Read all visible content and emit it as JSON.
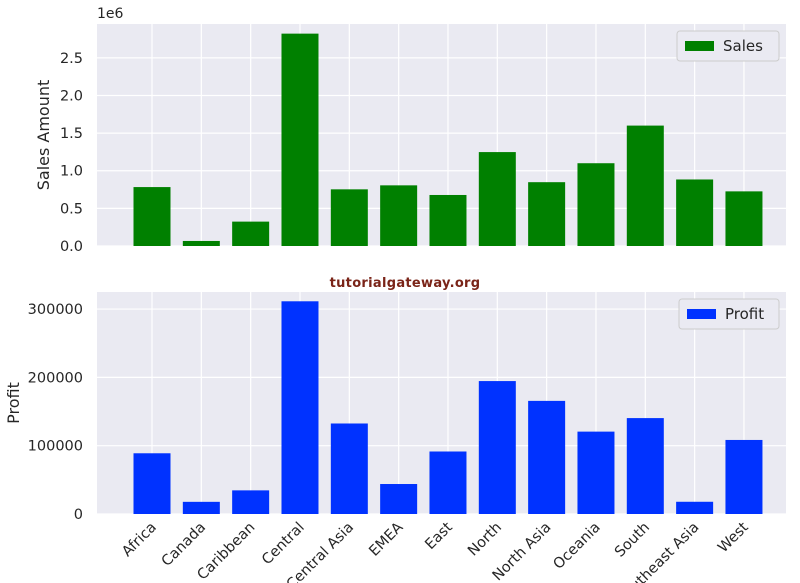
{
  "watermark": "tutorialgateway.org",
  "chart_data": [
    {
      "type": "bar",
      "categories": [
        "Africa",
        "Canada",
        "Caribbean",
        "Central",
        "Central Asia",
        "EMEA",
        "East",
        "North",
        "North Asia",
        "Oceania",
        "South",
        "Southeast Asia",
        "West"
      ],
      "series": [
        {
          "name": "Sales",
          "values": [
            783000,
            66900,
            324000,
            2822000,
            753000,
            806000,
            678000,
            1248000,
            848000,
            1100000,
            1600000,
            884000,
            726000
          ],
          "color": "#008000"
        }
      ],
      "title": "",
      "xlabel": "",
      "ylabel": "Sales Amount",
      "ylim": [
        0,
        2950000
      ],
      "yticks": [
        0,
        500000,
        1000000,
        1500000,
        2000000,
        2500000
      ],
      "ytick_labels": [
        "0.0",
        "0.5",
        "1.0",
        "1.5",
        "2.0",
        "2.5"
      ],
      "offset_label": "1e6",
      "grid": true,
      "legend": "top-right"
    },
    {
      "type": "bar",
      "categories": [
        "Africa",
        "Canada",
        "Caribbean",
        "Central",
        "Central Asia",
        "EMEA",
        "East",
        "North",
        "North Asia",
        "Oceania",
        "South",
        "Southeast Asia",
        "West"
      ],
      "series": [
        {
          "name": "Profit",
          "values": [
            88900,
            17800,
            34600,
            311400,
            132500,
            43900,
            91500,
            194600,
            165600,
            120600,
            140400,
            17900,
            108400
          ],
          "color": "#0032ff"
        }
      ],
      "title": "",
      "xlabel": "",
      "ylabel": "Profit",
      "ylim": [
        0,
        325000
      ],
      "yticks": [
        0,
        100000,
        200000,
        300000
      ],
      "ytick_labels": [
        "0",
        "100000",
        "200000",
        "300000"
      ],
      "grid": true,
      "legend": "top-right"
    }
  ]
}
